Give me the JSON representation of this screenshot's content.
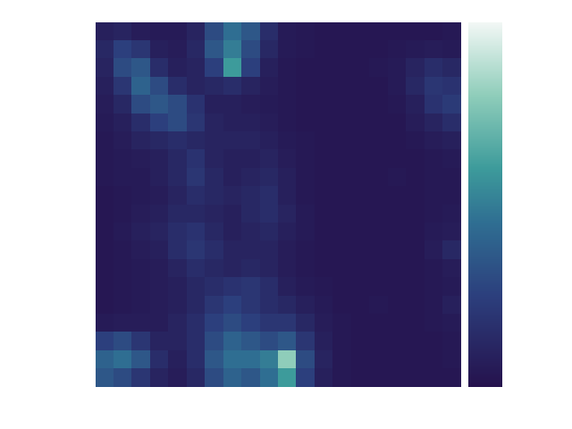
{
  "chart_data": {
    "type": "heatmap",
    "tick_labels": false,
    "color_range": [
      0,
      1
    ],
    "values": [
      [
        0.08,
        0.1,
        0.06,
        0.05,
        0.05,
        0.1,
        0.3,
        0.45,
        0.35,
        0.15,
        0.05,
        0.04,
        0.03,
        0.03,
        0.03,
        0.03,
        0.03,
        0.03,
        0.03,
        0.04
      ],
      [
        0.12,
        0.25,
        0.2,
        0.08,
        0.06,
        0.12,
        0.35,
        0.5,
        0.3,
        0.12,
        0.05,
        0.04,
        0.03,
        0.03,
        0.03,
        0.03,
        0.04,
        0.05,
        0.06,
        0.05
      ],
      [
        0.1,
        0.3,
        0.35,
        0.15,
        0.08,
        0.1,
        0.25,
        0.6,
        0.25,
        0.08,
        0.04,
        0.03,
        0.03,
        0.03,
        0.03,
        0.04,
        0.05,
        0.1,
        0.15,
        0.12
      ],
      [
        0.08,
        0.2,
        0.4,
        0.3,
        0.15,
        0.1,
        0.12,
        0.15,
        0.1,
        0.06,
        0.04,
        0.03,
        0.03,
        0.03,
        0.03,
        0.03,
        0.05,
        0.12,
        0.2,
        0.18
      ],
      [
        0.06,
        0.12,
        0.3,
        0.35,
        0.3,
        0.18,
        0.08,
        0.08,
        0.06,
        0.05,
        0.04,
        0.03,
        0.03,
        0.03,
        0.03,
        0.03,
        0.04,
        0.08,
        0.18,
        0.22
      ],
      [
        0.05,
        0.08,
        0.15,
        0.25,
        0.3,
        0.2,
        0.1,
        0.08,
        0.08,
        0.06,
        0.04,
        0.03,
        0.03,
        0.03,
        0.03,
        0.03,
        0.03,
        0.06,
        0.1,
        0.15
      ],
      [
        0.04,
        0.06,
        0.1,
        0.12,
        0.15,
        0.12,
        0.1,
        0.1,
        0.1,
        0.08,
        0.05,
        0.04,
        0.03,
        0.03,
        0.03,
        0.03,
        0.03,
        0.04,
        0.06,
        0.08
      ],
      [
        0.04,
        0.05,
        0.06,
        0.08,
        0.12,
        0.18,
        0.1,
        0.08,
        0.08,
        0.1,
        0.06,
        0.04,
        0.03,
        0.03,
        0.03,
        0.03,
        0.03,
        0.03,
        0.04,
        0.05
      ],
      [
        0.04,
        0.05,
        0.05,
        0.08,
        0.12,
        0.2,
        0.12,
        0.08,
        0.1,
        0.12,
        0.08,
        0.04,
        0.03,
        0.03,
        0.03,
        0.03,
        0.04,
        0.03,
        0.04,
        0.04
      ],
      [
        0.03,
        0.04,
        0.05,
        0.06,
        0.1,
        0.15,
        0.12,
        0.1,
        0.12,
        0.15,
        0.08,
        0.04,
        0.03,
        0.03,
        0.03,
        0.03,
        0.03,
        0.03,
        0.04,
        0.04
      ],
      [
        0.03,
        0.04,
        0.06,
        0.08,
        0.12,
        0.12,
        0.1,
        0.08,
        0.12,
        0.15,
        0.1,
        0.05,
        0.03,
        0.03,
        0.03,
        0.03,
        0.03,
        0.03,
        0.04,
        0.05
      ],
      [
        0.03,
        0.05,
        0.08,
        0.1,
        0.15,
        0.18,
        0.12,
        0.08,
        0.1,
        0.12,
        0.08,
        0.05,
        0.03,
        0.03,
        0.03,
        0.03,
        0.03,
        0.03,
        0.05,
        0.06
      ],
      [
        0.03,
        0.04,
        0.06,
        0.08,
        0.15,
        0.2,
        0.15,
        0.1,
        0.1,
        0.1,
        0.06,
        0.04,
        0.03,
        0.03,
        0.03,
        0.03,
        0.03,
        0.03,
        0.06,
        0.12
      ],
      [
        0.03,
        0.04,
        0.05,
        0.06,
        0.1,
        0.15,
        0.12,
        0.1,
        0.12,
        0.1,
        0.06,
        0.04,
        0.03,
        0.03,
        0.03,
        0.03,
        0.03,
        0.03,
        0.04,
        0.06
      ],
      [
        0.03,
        0.04,
        0.05,
        0.06,
        0.08,
        0.12,
        0.15,
        0.18,
        0.2,
        0.15,
        0.08,
        0.05,
        0.04,
        0.03,
        0.03,
        0.03,
        0.03,
        0.03,
        0.04,
        0.05
      ],
      [
        0.03,
        0.04,
        0.05,
        0.06,
        0.08,
        0.12,
        0.2,
        0.25,
        0.2,
        0.15,
        0.12,
        0.08,
        0.05,
        0.03,
        0.03,
        0.04,
        0.03,
        0.03,
        0.04,
        0.08
      ],
      [
        0.05,
        0.06,
        0.06,
        0.06,
        0.1,
        0.15,
        0.25,
        0.3,
        0.25,
        0.2,
        0.2,
        0.12,
        0.06,
        0.04,
        0.03,
        0.03,
        0.03,
        0.03,
        0.04,
        0.05
      ],
      [
        0.25,
        0.3,
        0.2,
        0.1,
        0.1,
        0.15,
        0.3,
        0.4,
        0.35,
        0.3,
        0.35,
        0.2,
        0.08,
        0.04,
        0.03,
        0.03,
        0.03,
        0.03,
        0.03,
        0.04
      ],
      [
        0.4,
        0.45,
        0.35,
        0.15,
        0.08,
        0.15,
        0.35,
        0.45,
        0.45,
        0.5,
        0.8,
        0.3,
        0.1,
        0.04,
        0.03,
        0.03,
        0.03,
        0.03,
        0.03,
        0.04
      ],
      [
        0.35,
        0.3,
        0.2,
        0.1,
        0.06,
        0.12,
        0.3,
        0.4,
        0.35,
        0.45,
        0.6,
        0.25,
        0.08,
        0.04,
        0.03,
        0.03,
        0.03,
        0.03,
        0.03,
        0.03
      ]
    ]
  }
}
